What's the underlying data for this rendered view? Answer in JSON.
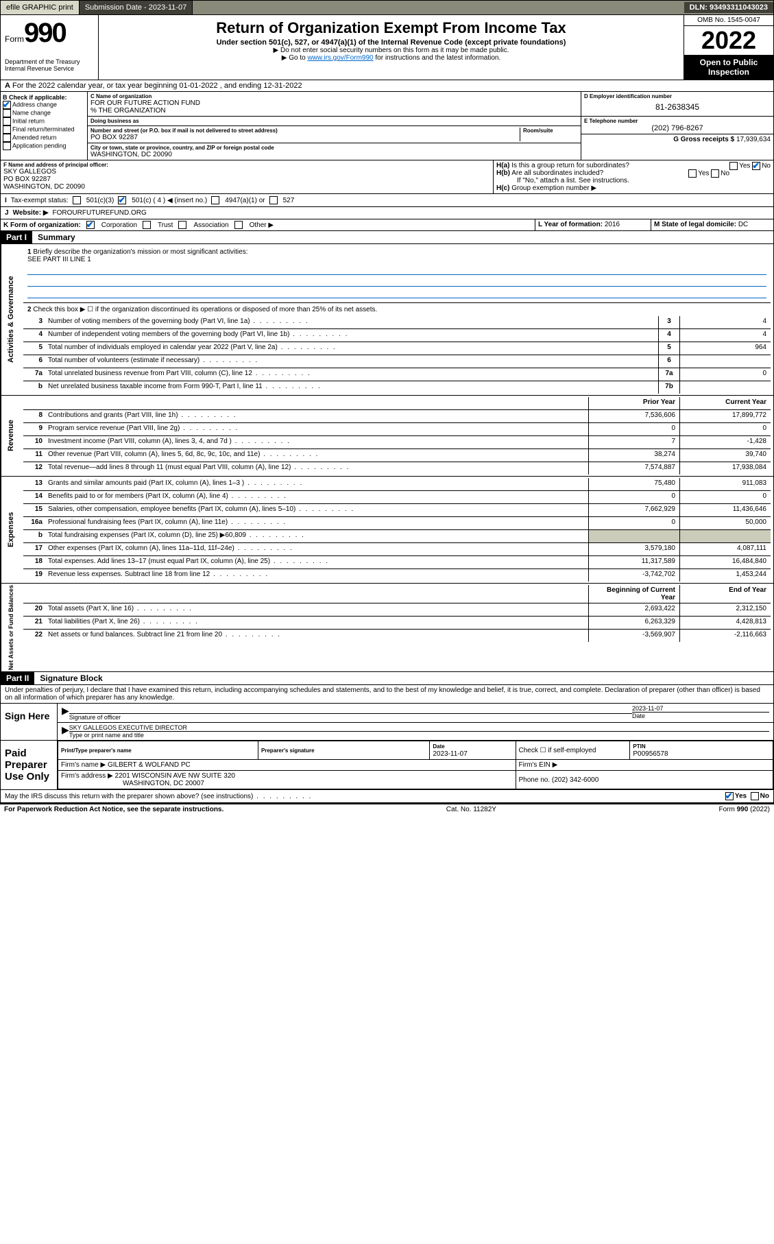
{
  "topbar": {
    "efile": "efile GRAPHIC print",
    "submission_label": "Submission Date - 2023-11-07",
    "dln": "DLN: 93493311043023"
  },
  "header": {
    "form_word": "Form",
    "form_num": "990",
    "dept": "Department of the Treasury",
    "irs": "Internal Revenue Service",
    "title": "Return of Organization Exempt From Income Tax",
    "subtitle": "Under section 501(c), 527, or 4947(a)(1) of the Internal Revenue Code (except private foundations)",
    "note1": "▶ Do not enter social security numbers on this form as it may be made public.",
    "note2_pre": "▶ Go to ",
    "note2_link": "www.irs.gov/Form990",
    "note2_post": " for instructions and the latest information.",
    "omb": "OMB No. 1545-0047",
    "year": "2022",
    "open": "Open to Public Inspection"
  },
  "A": {
    "text": "For the 2022 calendar year, or tax year beginning 01-01-2022   , and ending 12-31-2022"
  },
  "B": {
    "label": "B Check if applicable:",
    "items": [
      "Address change",
      "Name change",
      "Initial return",
      "Final return/terminated",
      "Amended return",
      "Application pending"
    ],
    "checked": "Address change"
  },
  "C": {
    "name_label": "C Name of organization",
    "name": "FOR OUR FUTURE ACTION FUND",
    "care_of": "% THE ORGANIZATION",
    "dba_label": "Doing business as",
    "addr_label": "Number and street (or P.O. box if mail is not delivered to street address)",
    "room_label": "Room/suite",
    "addr": "PO BOX 92287",
    "city_label": "City or town, state or province, country, and ZIP or foreign postal code",
    "city": "WASHINGTON, DC  20090"
  },
  "D": {
    "label": "D Employer identification number",
    "val": "81-2638345"
  },
  "E": {
    "label": "E Telephone number",
    "val": "(202) 796-8267"
  },
  "G": {
    "label": "G Gross receipts $",
    "val": "17,939,634"
  },
  "F": {
    "label": "F Name and address of principal officer:",
    "name": "SKY GALLEGOS",
    "addr": "PO BOX 92287",
    "city": "WASHINGTON, DC  20090"
  },
  "H": {
    "a": "Is this a group return for subordinates?",
    "b": "Are all subordinates included?",
    "b_note": "If \"No,\" attach a list. See instructions.",
    "c": "Group exemption number ▶",
    "yes": "Yes",
    "no": "No"
  },
  "I": {
    "label": "Tax-exempt status:",
    "opts": [
      "501(c)(3)",
      "501(c) ( 4 ) ◀ (insert no.)",
      "4947(a)(1) or",
      "527"
    ]
  },
  "J": {
    "label": "Website: ▶",
    "val": "FOROURFUTUREFUND.ORG"
  },
  "K": {
    "label": "K Form of organization:",
    "opts": [
      "Corporation",
      "Trust",
      "Association",
      "Other ▶"
    ]
  },
  "L": {
    "label": "L Year of formation:",
    "val": "2016"
  },
  "M": {
    "label": "M State of legal domicile:",
    "val": "DC"
  },
  "part1": {
    "hdr": "Part I",
    "title": "Summary",
    "l1": "Briefly describe the organization's mission or most significant activities:",
    "l1val": "SEE PART III LINE 1",
    "l2": "Check this box ▶ ☐  if the organization discontinued its operations or disposed of more than 25% of its net assets.",
    "activities": {
      "label": "Activities & Governance",
      "rows": [
        {
          "n": "3",
          "d": "Number of voting members of the governing body (Part VI, line 1a)",
          "b": "3",
          "v": "4"
        },
        {
          "n": "4",
          "d": "Number of independent voting members of the governing body (Part VI, line 1b)",
          "b": "4",
          "v": "4"
        },
        {
          "n": "5",
          "d": "Total number of individuals employed in calendar year 2022 (Part V, line 2a)",
          "b": "5",
          "v": "964"
        },
        {
          "n": "6",
          "d": "Total number of volunteers (estimate if necessary)",
          "b": "6",
          "v": ""
        },
        {
          "n": "7a",
          "d": "Total unrelated business revenue from Part VIII, column (C), line 12",
          "b": "7a",
          "v": "0"
        },
        {
          "n": "b",
          "d": "Net unrelated business taxable income from Form 990-T, Part I, line 11",
          "b": "7b",
          "v": ""
        }
      ]
    },
    "revenue": {
      "label": "Revenue",
      "prior": "Prior Year",
      "current": "Current Year",
      "rows": [
        {
          "n": "8",
          "d": "Contributions and grants (Part VIII, line 1h)",
          "p": "7,536,606",
          "c": "17,899,772"
        },
        {
          "n": "9",
          "d": "Program service revenue (Part VIII, line 2g)",
          "p": "0",
          "c": "0"
        },
        {
          "n": "10",
          "d": "Investment income (Part VIII, column (A), lines 3, 4, and 7d )",
          "p": "7",
          "c": "-1,428"
        },
        {
          "n": "11",
          "d": "Other revenue (Part VIII, column (A), lines 5, 6d, 8c, 9c, 10c, and 11e)",
          "p": "38,274",
          "c": "39,740"
        },
        {
          "n": "12",
          "d": "Total revenue—add lines 8 through 11 (must equal Part VIII, column (A), line 12)",
          "p": "7,574,887",
          "c": "17,938,084"
        }
      ]
    },
    "expenses": {
      "label": "Expenses",
      "rows": [
        {
          "n": "13",
          "d": "Grants and similar amounts paid (Part IX, column (A), lines 1–3 )",
          "p": "75,480",
          "c": "911,083"
        },
        {
          "n": "14",
          "d": "Benefits paid to or for members (Part IX, column (A), line 4)",
          "p": "0",
          "c": "0"
        },
        {
          "n": "15",
          "d": "Salaries, other compensation, employee benefits (Part IX, column (A), lines 5–10)",
          "p": "7,662,929",
          "c": "11,436,646"
        },
        {
          "n": "16a",
          "d": "Professional fundraising fees (Part IX, column (A), line 11e)",
          "p": "0",
          "c": "50,000"
        },
        {
          "n": "b",
          "d": "Total fundraising expenses (Part IX, column (D), line 25) ▶60,809",
          "p": "",
          "c": "",
          "shade": true
        },
        {
          "n": "17",
          "d": "Other expenses (Part IX, column (A), lines 11a–11d, 11f–24e)",
          "p": "3,579,180",
          "c": "4,087,111"
        },
        {
          "n": "18",
          "d": "Total expenses. Add lines 13–17 (must equal Part IX, column (A), line 25)",
          "p": "11,317,589",
          "c": "16,484,840"
        },
        {
          "n": "19",
          "d": "Revenue less expenses. Subtract line 18 from line 12",
          "p": "-3,742,702",
          "c": "1,453,244"
        }
      ]
    },
    "netassets": {
      "label": "Net Assets or Fund Balances",
      "begin": "Beginning of Current Year",
      "end": "End of Year",
      "rows": [
        {
          "n": "20",
          "d": "Total assets (Part X, line 16)",
          "p": "2,693,422",
          "c": "2,312,150"
        },
        {
          "n": "21",
          "d": "Total liabilities (Part X, line 26)",
          "p": "6,263,329",
          "c": "4,428,813"
        },
        {
          "n": "22",
          "d": "Net assets or fund balances. Subtract line 21 from line 20",
          "p": "-3,569,907",
          "c": "-2,116,663"
        }
      ]
    }
  },
  "part2": {
    "hdr": "Part II",
    "title": "Signature Block",
    "penalty": "Under penalties of perjury, I declare that I have examined this return, including accompanying schedules and statements, and to the best of my knowledge and belief, it is true, correct, and complete. Declaration of preparer (other than officer) is based on all information of which preparer has any knowledge.",
    "sign_here": "Sign Here",
    "sig_officer": "Signature of officer",
    "date": "Date",
    "sig_date": "2023-11-07",
    "officer_name": "SKY GALLEGOS  EXECUTIVE DIRECTOR",
    "type_name": "Type or print name and title",
    "paid": "Paid Preparer Use Only",
    "prep_name_lbl": "Print/Type preparer's name",
    "prep_sig_lbl": "Preparer's signature",
    "prep_date_lbl": "Date",
    "prep_date": "2023-11-07",
    "check_self": "Check ☐ if self-employed",
    "ptin_lbl": "PTIN",
    "ptin": "P00956578",
    "firm_name_lbl": "Firm's name    ▶",
    "firm_name": "GILBERT & WOLFAND PC",
    "firm_ein_lbl": "Firm's EIN ▶",
    "firm_addr_lbl": "Firm's address ▶",
    "firm_addr": "2201 WISCONSIN AVE NW SUITE 320",
    "firm_city": "WASHINGTON, DC  20007",
    "phone_lbl": "Phone no.",
    "phone": "(202) 342-6000",
    "may_irs": "May the IRS discuss this return with the preparer shown above? (see instructions)"
  },
  "footer": {
    "left": "For Paperwork Reduction Act Notice, see the separate instructions.",
    "mid": "Cat. No. 11282Y",
    "right": "Form 990 (2022)"
  }
}
